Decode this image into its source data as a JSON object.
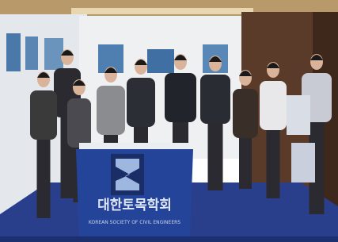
{
  "banner": {
    "title_ko": "대한토목학회",
    "title_en": "KOREAN SOCIETY OF CIVIL ENGINEERS"
  }
}
